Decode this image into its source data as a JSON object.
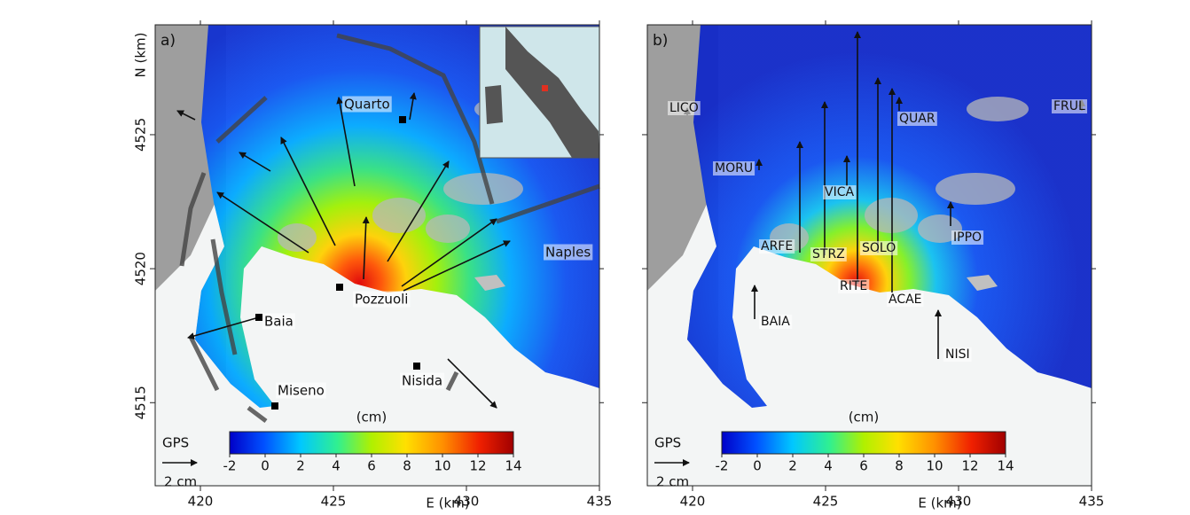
{
  "panels": [
    {
      "label": "a)",
      "xlim": [
        418.3,
        435
      ],
      "ylim": [
        4511.9,
        4529.1
      ],
      "xticks": [
        420,
        425,
        430,
        435
      ],
      "yticks": [
        4515,
        4520,
        4525
      ],
      "show_ytick_labels": true,
      "x_axis_label": "E (km)",
      "y_axis_label": "N (km)",
      "places": [
        "Quarto",
        "Pozzuoli",
        "Naples",
        "Baia",
        "Miseno",
        "Nisida"
      ],
      "gps_label": "GPS",
      "gps_scale": "2 cm",
      "colorbar_unit": "(cm)",
      "colorbar_range": [
        -2,
        14
      ],
      "colorbar_ticks": [
        -2,
        0,
        2,
        4,
        6,
        8,
        10,
        12,
        14
      ]
    },
    {
      "label": "b)",
      "xlim": [
        418.3,
        435
      ],
      "ylim": [
        4511.9,
        4529.1
      ],
      "xticks": [
        420,
        425,
        430,
        435
      ],
      "yticks": [
        4515,
        4520,
        4525
      ],
      "show_ytick_labels": false,
      "x_axis_label": "E (km)",
      "places": [
        "LICO",
        "MORU",
        "VICA",
        "ARFE",
        "STRZ",
        "SOLO",
        "RITE",
        "ACAE",
        "QUAR",
        "IPPO",
        "BAIA",
        "NISI",
        "FRUL"
      ],
      "gps_label": "GPS",
      "gps_scale": "2 cm",
      "colorbar_unit": "(cm)",
      "colorbar_range": [
        -2,
        14
      ],
      "colorbar_ticks": [
        -2,
        0,
        2,
        4,
        6,
        8,
        10,
        12,
        14
      ]
    }
  ]
}
